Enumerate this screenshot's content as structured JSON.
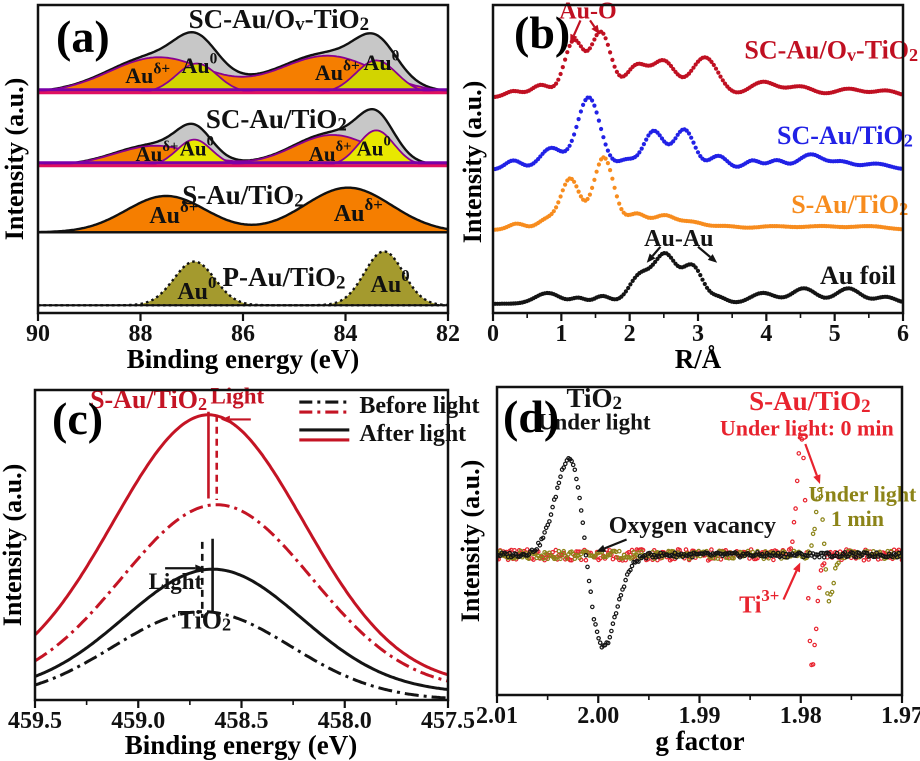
{
  "figure": {
    "background": "#ffffff",
    "frame_color": "#111111"
  },
  "chart_data": [
    {
      "id": "a",
      "type": "xps_stack",
      "panel_label": "(a)",
      "xlabel": "Binding energy (eV)",
      "ylabel": "Intensity (a.u.)",
      "xlim": [
        90,
        82
      ],
      "xtick_values": [
        90,
        88,
        86,
        84,
        82
      ],
      "xtick_labels": [
        "90",
        "88",
        "86",
        "84",
        "82"
      ],
      "minor_ticks": [],
      "series": [
        {
          "name": "P-Au-TiO2",
          "style": "single",
          "baseline": 0.025,
          "fill": "#A49A2E",
          "outline": "#111111",
          "outline_dash": "2.5 3.2",
          "peaks": [
            [
              86.95,
              0.4,
              0.142
            ],
            [
              83.25,
              0.38,
              0.175
            ]
          ]
        },
        {
          "name": "S-Au-TiO2",
          "style": "single",
          "baseline": 0.262,
          "fill": "#F57E00",
          "outline": "#111111",
          "outline_dash": null,
          "peaks": [
            [
              87.5,
              0.78,
              0.118
            ],
            [
              83.95,
              0.85,
              0.145
            ]
          ]
        },
        {
          "name": "SC-Au-TiO2",
          "style": "composite",
          "baseline": 0.478,
          "groups": [
            {
              "fill": "#F57E00",
              "stroke": "#8A0090",
              "peaks": [
                [
                  87.7,
                  0.8,
                  0.065
                ],
                [
                  84.25,
                  0.78,
                  0.1
                ]
              ]
            },
            {
              "fill": "#E8E800",
              "stroke": "#8A0090",
              "peaks": [
                [
                  86.95,
                  0.34,
                  0.085
                ],
                [
                  83.4,
                  0.35,
                  0.115
                ]
              ]
            }
          ],
          "envelope": {
            "factor": 1.06,
            "fill": "#C7C7C7",
            "stroke": "#111111"
          },
          "baseline_lines": [
            "#E01060",
            "#7A00A8"
          ]
        },
        {
          "name": "SC-Au-Ov-TiO2",
          "style": "composite",
          "baseline": 0.715,
          "groups": [
            {
              "fill": "#F57E00",
              "stroke": "#8A0090",
              "peaks": [
                [
                  87.65,
                  0.95,
                  0.115
                ],
                [
                  84.35,
                  0.95,
                  0.12
                ]
              ]
            },
            {
              "fill": "#D2D400",
              "stroke": "#8A0090",
              "peaks": [
                [
                  86.9,
                  0.4,
                  0.095
                ],
                [
                  83.4,
                  0.4,
                  0.105
                ]
              ]
            }
          ],
          "envelope": {
            "factor": 1.06,
            "fill": "#C7C7C7",
            "stroke": "#111111"
          },
          "baseline_lines": [
            "#E01060",
            "#7A00A8"
          ]
        }
      ],
      "labels": [
        {
          "text": "SC-Au/O_{v}-TiO_{2}",
          "x": 85.3,
          "y": 0.945,
          "size": 27,
          "color": "#111111"
        },
        {
          "text": "Au^{δ+}",
          "x": 87.86,
          "y": 0.763,
          "size": 22,
          "color": "#111111"
        },
        {
          "text": "Au^{0}",
          "x": 86.85,
          "y": 0.795,
          "size": 22,
          "color": "#111111"
        },
        {
          "text": "Au^{δ+}",
          "x": 84.16,
          "y": 0.773,
          "size": 22,
          "color": "#111111"
        },
        {
          "text": "Au^{0}",
          "x": 83.3,
          "y": 0.805,
          "size": 22,
          "color": "#111111"
        },
        {
          "text": "SC-Au/TiO_{2}",
          "x": 85.35,
          "y": 0.62,
          "size": 27,
          "color": "#111111"
        },
        {
          "text": "Au^{δ+}",
          "x": 87.68,
          "y": 0.51,
          "size": 21,
          "color": "#111111"
        },
        {
          "text": "Au^{0}",
          "x": 86.9,
          "y": 0.528,
          "size": 21,
          "color": "#111111"
        },
        {
          "text": "Au^{δ+}",
          "x": 84.3,
          "y": 0.51,
          "size": 21,
          "color": "#111111"
        },
        {
          "text": "Au^{0}",
          "x": 83.45,
          "y": 0.528,
          "size": 21,
          "color": "#111111"
        },
        {
          "text": "S-Au/TiO_{2}",
          "x": 86.0,
          "y": 0.373,
          "size": 27,
          "color": "#111111"
        },
        {
          "text": "Au^{δ+}",
          "x": 87.35,
          "y": 0.312,
          "size": 24,
          "color": "#111111"
        },
        {
          "text": "Au^{δ+}",
          "x": 83.75,
          "y": 0.318,
          "size": 24,
          "color": "#111111"
        },
        {
          "text": "P-Au/TiO_{2}",
          "x": 85.2,
          "y": 0.107,
          "size": 27,
          "color": "#111111"
        },
        {
          "text": "Au^{0}",
          "x": 86.9,
          "y": 0.065,
          "size": 24,
          "color": "#111111"
        },
        {
          "text": "Au^{0}",
          "x": 83.13,
          "y": 0.088,
          "size": 24,
          "color": "#111111"
        }
      ],
      "arrows": []
    },
    {
      "id": "b",
      "type": "exafs",
      "panel_label": "(b)",
      "xlabel": "R/Å",
      "ylabel": "Intensity (a.u.)",
      "xlim": [
        0,
        6
      ],
      "xtick_values": [
        0,
        1,
        2,
        3,
        4,
        5,
        6
      ],
      "xtick_labels": [
        "0",
        "1",
        "2",
        "3",
        "4",
        "5",
        "6"
      ],
      "minor_ticks": [
        0.5,
        1.5,
        2.5,
        3.5,
        4.5,
        5.5
      ],
      "series": [
        {
          "name": "Au-foil",
          "color": "#141414",
          "baseline": 0.03,
          "peaks": [
            [
              0.8,
              0.18,
              0.035
            ],
            [
              1.25,
              0.1,
              0.018
            ],
            [
              1.6,
              0.12,
              0.025
            ],
            [
              2.15,
              0.16,
              0.09
            ],
            [
              2.52,
              0.16,
              0.155
            ],
            [
              2.92,
              0.15,
              0.12
            ],
            [
              3.3,
              0.12,
              0.02
            ],
            [
              3.95,
              0.18,
              0.035
            ],
            [
              4.55,
              0.18,
              0.05
            ],
            [
              5.2,
              0.18,
              0.05
            ],
            [
              5.75,
              0.15,
              0.022
            ]
          ]
        },
        {
          "name": "S-Au-TiO2",
          "color": "#F78C1E",
          "baseline": 0.27,
          "peaks": [
            [
              0.35,
              0.12,
              0.02
            ],
            [
              0.78,
              0.13,
              0.032
            ],
            [
              1.13,
              0.14,
              0.165
            ],
            [
              1.62,
              0.15,
              0.235
            ],
            [
              2.1,
              0.14,
              0.05
            ],
            [
              2.5,
              0.16,
              0.045
            ],
            [
              2.9,
              0.18,
              0.025
            ],
            [
              3.4,
              0.2,
              0.012
            ],
            [
              4.1,
              0.25,
              0.012
            ],
            [
              4.8,
              0.25,
              0.012
            ],
            [
              5.5,
              0.25,
              0.012
            ]
          ]
        },
        {
          "name": "SC-Au-TiO2",
          "color": "#2121E6",
          "baseline": 0.465,
          "peaks": [
            [
              0.3,
              0.12,
              0.03
            ],
            [
              0.85,
              0.16,
              0.07
            ],
            [
              1.4,
              0.17,
              0.235
            ],
            [
              1.95,
              0.12,
              0.03
            ],
            [
              2.35,
              0.15,
              0.125
            ],
            [
              2.8,
              0.15,
              0.13
            ],
            [
              3.3,
              0.13,
              0.045
            ],
            [
              3.8,
              0.12,
              0.03
            ],
            [
              4.15,
              0.12,
              0.03
            ],
            [
              4.65,
              0.18,
              0.05
            ],
            [
              5.1,
              0.15,
              0.025
            ],
            [
              5.6,
              0.2,
              0.02
            ]
          ]
        },
        {
          "name": "SC-Au-Ov-TiO2",
          "color": "#C01022",
          "baseline": 0.7,
          "peaks": [
            [
              0.3,
              0.12,
              0.02
            ],
            [
              0.7,
              0.14,
              0.04
            ],
            [
              1.18,
              0.14,
              0.18
            ],
            [
              1.58,
              0.15,
              0.21
            ],
            [
              2.1,
              0.16,
              0.1
            ],
            [
              2.5,
              0.17,
              0.115
            ],
            [
              3.1,
              0.2,
              0.13
            ],
            [
              3.95,
              0.2,
              0.05
            ],
            [
              4.5,
              0.2,
              0.035
            ],
            [
              5.2,
              0.2,
              0.028
            ],
            [
              5.75,
              0.18,
              0.022
            ]
          ]
        }
      ],
      "labels": [
        {
          "text": "Au-O",
          "x": 1.39,
          "y": 0.975,
          "size": 24,
          "color": "#C01022"
        },
        {
          "text": "SC-Au/O_{v}-TiO_{2}",
          "x": 4.95,
          "y": 0.845,
          "size": 26,
          "color": "#C01022"
        },
        {
          "text": "SC-Au/TiO_{2}",
          "x": 5.15,
          "y": 0.568,
          "size": 26,
          "color": "#2121E6"
        },
        {
          "text": "S-Au/TiO_{2}",
          "x": 5.22,
          "y": 0.344,
          "size": 26,
          "color": "#F78C1E"
        },
        {
          "text": "Au foil",
          "x": 5.34,
          "y": 0.114,
          "size": 26,
          "color": "#141414"
        },
        {
          "text": "Au-Au",
          "x": 2.72,
          "y": 0.237,
          "size": 24,
          "color": "#141414"
        }
      ],
      "arrows": [
        {
          "x1": 1.28,
          "y1": 0.95,
          "x2": 1.13,
          "y2": 0.875,
          "color": "#C01022"
        },
        {
          "x1": 1.42,
          "y1": 0.95,
          "x2": 1.56,
          "y2": 0.905,
          "color": "#C01022"
        },
        {
          "x1": 2.45,
          "y1": 0.215,
          "x2": 2.25,
          "y2": 0.163,
          "color": "#141414"
        },
        {
          "x1": 3.0,
          "y1": 0.215,
          "x2": 3.28,
          "y2": 0.163,
          "color": "#141414"
        }
      ]
    },
    {
      "id": "c",
      "type": "xps_shift",
      "panel_label": "(c)",
      "xlabel": "Binding energy (eV)",
      "ylabel": "Intensity (a.u.)",
      "xlim": [
        459.5,
        457.5
      ],
      "xtick_values": [
        459.5,
        459.0,
        458.5,
        458.0,
        457.5
      ],
      "xtick_labels": [
        "459.5",
        "459.0",
        "458.5",
        "458.0",
        "457.5"
      ],
      "minor_ticks": [
        459.25,
        458.75,
        458.25,
        457.75
      ],
      "series": [
        {
          "name": "S-Au-TiO2-after-light",
          "color": "#C41424",
          "dash": null,
          "center": 458.66,
          "sigma": 0.46,
          "amp": 0.875,
          "offset": 0.045
        },
        {
          "name": "S-Au-TiO2-before-light",
          "color": "#C41424",
          "dash": "14 5 3 5",
          "center": 458.62,
          "sigma": 0.46,
          "amp": 0.6,
          "offset": 0.03
        },
        {
          "name": "TiO2-after-light",
          "color": "#141414",
          "dash": null,
          "center": 458.64,
          "sigma": 0.43,
          "amp": 0.4,
          "offset": 0.022
        },
        {
          "name": "TiO2-before-light",
          "color": "#141414",
          "dash": "14 5 3 5",
          "center": 458.69,
          "sigma": 0.43,
          "amp": 0.285,
          "offset": 0.0
        }
      ],
      "markers": [
        {
          "x": 458.66,
          "y1": 0.93,
          "y2": 0.65,
          "color": "#C41424",
          "dash": null
        },
        {
          "x": 458.62,
          "y1": 0.92,
          "y2": 0.645,
          "color": "#C41424",
          "dash": "7 5"
        },
        {
          "x": 458.64,
          "y1": 0.52,
          "y2": 0.285,
          "color": "#141414",
          "dash": null
        },
        {
          "x": 458.69,
          "y1": 0.51,
          "y2": 0.265,
          "color": "#141414",
          "dash": "7 5"
        }
      ],
      "legend": {
        "x": 0.64,
        "y": [
          0.945,
          0.855
        ],
        "colors": [
          "#141414",
          "#C41424"
        ],
        "rows": [
          {
            "label": "Before light",
            "dash": "13 5 3 5"
          },
          {
            "label": "After light",
            "dash": null
          }
        ]
      },
      "labels": [
        {
          "text": "S-Au/TiO_{2}",
          "x": 458.95,
          "y": 0.962,
          "size": 26,
          "color": "#C41424"
        },
        {
          "text": "Light",
          "x": 458.52,
          "y": 0.972,
          "size": 23,
          "color": "#C41424"
        },
        {
          "text": "Light",
          "x": 458.82,
          "y": 0.375,
          "size": 23,
          "color": "#141414"
        },
        {
          "text": "TiO_{2}",
          "x": 458.68,
          "y": 0.25,
          "size": 26,
          "color": "#141414"
        }
      ],
      "arrows": [
        {
          "x1": 458.455,
          "y1": 0.905,
          "x2": 458.6,
          "y2": 0.905,
          "color": "#C41424"
        },
        {
          "x1": 458.87,
          "y1": 0.425,
          "x2": 458.68,
          "y2": 0.425,
          "color": "#141414"
        }
      ]
    },
    {
      "id": "d",
      "type": "epr",
      "panel_label": "(d)",
      "xlabel": "g factor",
      "ylabel": "Intensity (a.u.)",
      "xlim": [
        2.01,
        1.97
      ],
      "xtick_values": [
        2.01,
        2.0,
        1.99,
        1.98,
        1.97
      ],
      "xtick_labels": [
        "2.01",
        "2.00",
        "1.99",
        "1.98",
        "1.97"
      ],
      "minor_ticks": [
        2.005,
        1.995,
        1.985,
        1.975
      ],
      "baseline": 0.455,
      "series": [
        {
          "name": "S-Au-TiO2-under-light-0min",
          "color": "#E8232E",
          "center": 1.9794,
          "width": 0.00055,
          "pos_amp": 0.38,
          "neg_amp": 0.35,
          "noise": 0.018,
          "seed": 7
        },
        {
          "name": "S-Au-TiO2-under-light-1min",
          "color": "#8C8418",
          "center": 1.97765,
          "width": 0.0005,
          "pos_amp": 0.2,
          "neg_amp": 0.145,
          "noise": 0.013,
          "seed": 13
        },
        {
          "name": "TiO2-under-light",
          "color": "#141414",
          "center": 2.0012,
          "width": 0.0017,
          "pos_amp": 0.315,
          "neg_amp": 0.3,
          "noise": 0.008,
          "seed": 3
        }
      ],
      "labels": [
        {
          "text": "TiO_{2}",
          "x": 2.0004,
          "y": 0.955,
          "size": 27,
          "color": "#141414"
        },
        {
          "text": "Under light",
          "x": 2.0004,
          "y": 0.878,
          "size": 23,
          "color": "#141414"
        },
        {
          "text": "S-Au/TiO_{2}",
          "x": 1.9791,
          "y": 0.945,
          "size": 27,
          "color": "#E8232E"
        },
        {
          "text": "Under light: 0 min",
          "x": 1.9794,
          "y": 0.858,
          "size": 22,
          "color": "#E8232E"
        },
        {
          "text": "Under light",
          "x": 1.9739,
          "y": 0.645,
          "size": 22,
          "color": "#8C8418"
        },
        {
          "text": "1 min",
          "x": 1.9744,
          "y": 0.565,
          "size": 22,
          "color": "#8C8418"
        },
        {
          "text": "Oxygen vacancy",
          "x": 1.9907,
          "y": 0.545,
          "size": 24,
          "color": "#141414"
        },
        {
          "text": "Ti^{3+}",
          "x": 1.9841,
          "y": 0.288,
          "size": 24,
          "color": "#E8232E"
        }
      ],
      "arrows": [
        {
          "x1": 1.97955,
          "y1": 0.815,
          "x2": 1.9781,
          "y2": 0.685,
          "color": "#E8232E"
        },
        {
          "x1": 1.9817,
          "y1": 0.31,
          "x2": 1.98005,
          "y2": 0.43,
          "color": "#E8232E"
        },
        {
          "x1": 1.9972,
          "y1": 0.505,
          "x2": 2.0002,
          "y2": 0.465,
          "color": "#141414"
        }
      ]
    }
  ]
}
